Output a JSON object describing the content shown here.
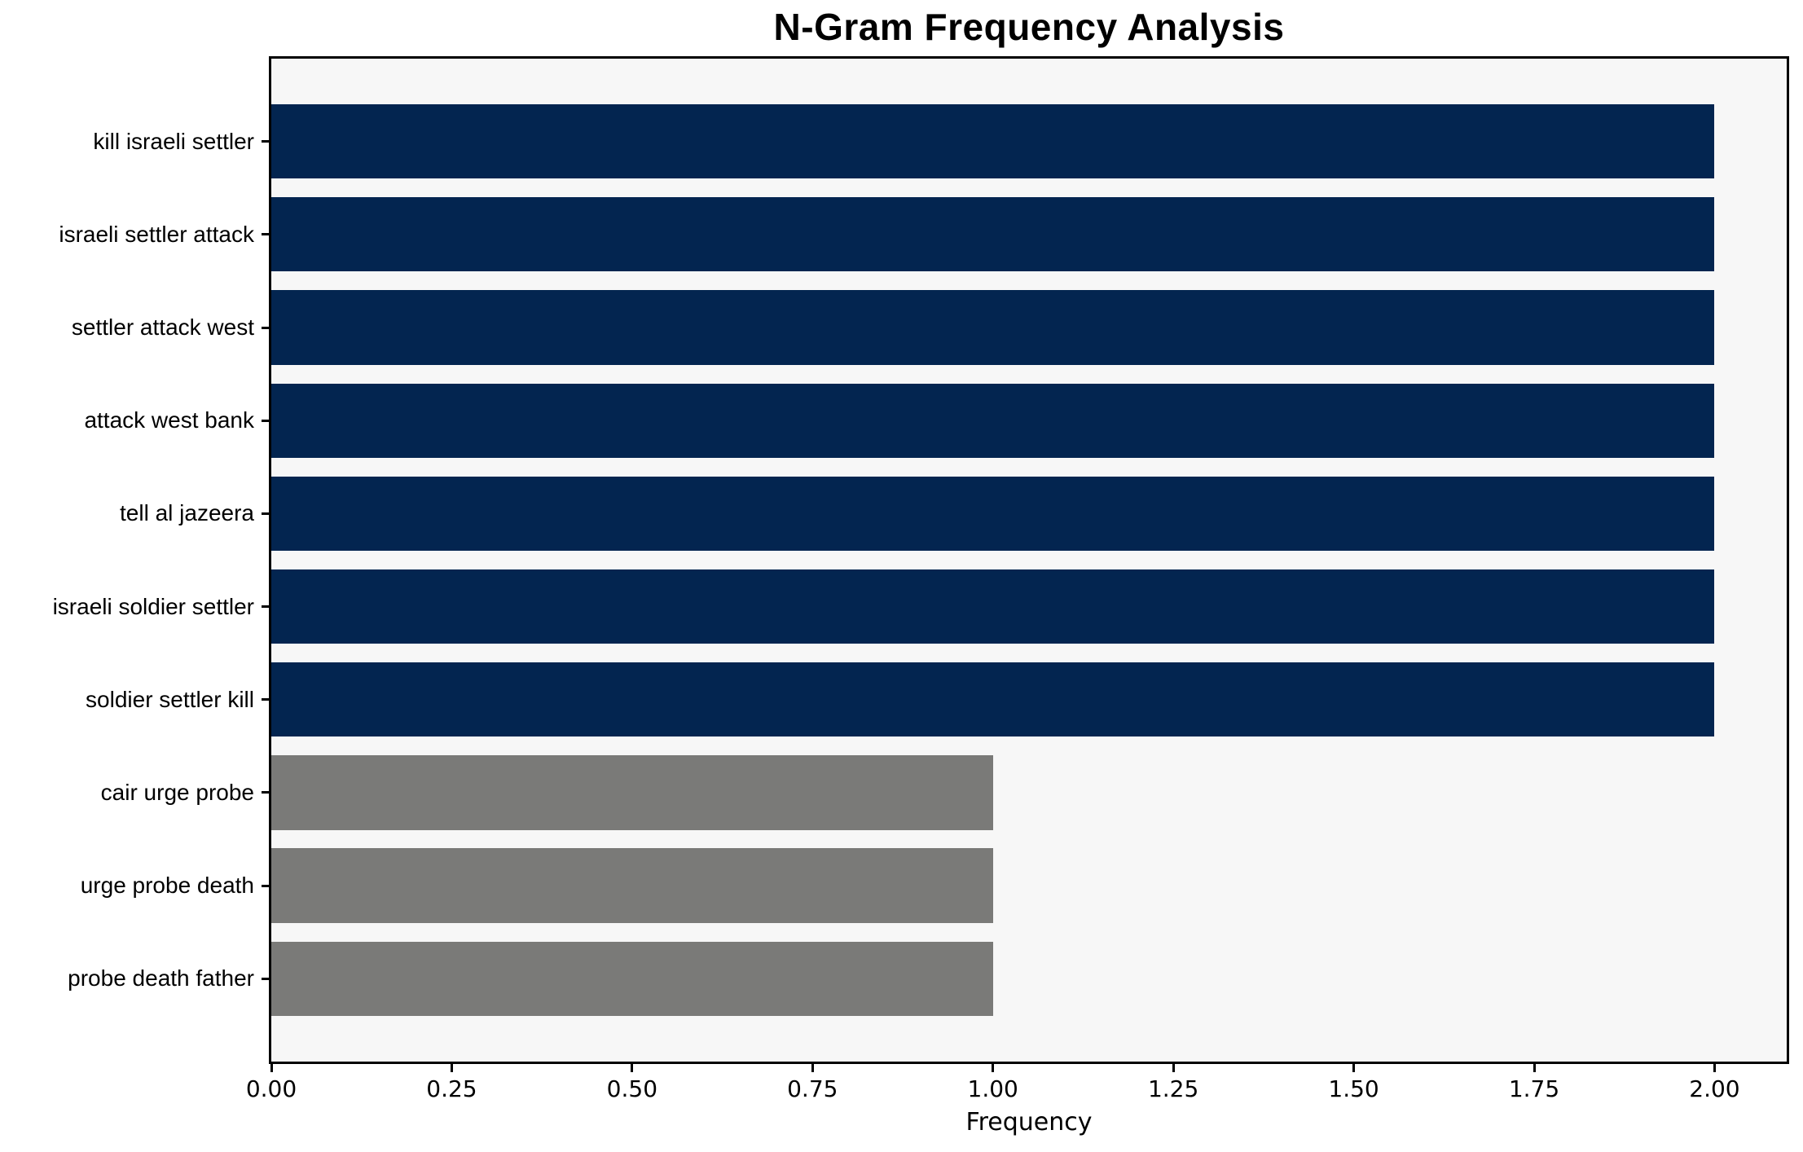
{
  "chart_data": {
    "type": "bar",
    "orientation": "horizontal",
    "title": "N-Gram Frequency Analysis",
    "xlabel": "Frequency",
    "ylabel": "",
    "categories": [
      "kill israeli settler",
      "israeli settler attack",
      "settler attack west",
      "attack west bank",
      "tell al jazeera",
      "israeli soldier settler",
      "soldier settler kill",
      "cair urge probe",
      "urge probe death",
      "probe death father"
    ],
    "values": [
      2,
      2,
      2,
      2,
      2,
      2,
      2,
      1,
      1,
      1
    ],
    "bar_colors": [
      "#032550",
      "#032550",
      "#032550",
      "#032550",
      "#032550",
      "#032550",
      "#032550",
      "#7a7a78",
      "#7a7a78",
      "#7a7a78"
    ],
    "xlim": [
      0,
      2.1
    ],
    "x_ticks": [
      0.0,
      0.25,
      0.5,
      0.75,
      1.0,
      1.25,
      1.5,
      1.75,
      2.0
    ],
    "x_tick_labels": [
      "0.00",
      "0.25",
      "0.50",
      "0.75",
      "1.00",
      "1.25",
      "1.50",
      "1.75",
      "2.00"
    ],
    "grid": false,
    "legend": null,
    "bar_height_fraction": 0.8
  },
  "colors": {
    "navy_bar": "#032550",
    "gray_bar": "#7a7a78",
    "plot_background": "#f7f7f7",
    "figure_background": "#ffffff",
    "spine": "#000000",
    "text": "#000000"
  }
}
